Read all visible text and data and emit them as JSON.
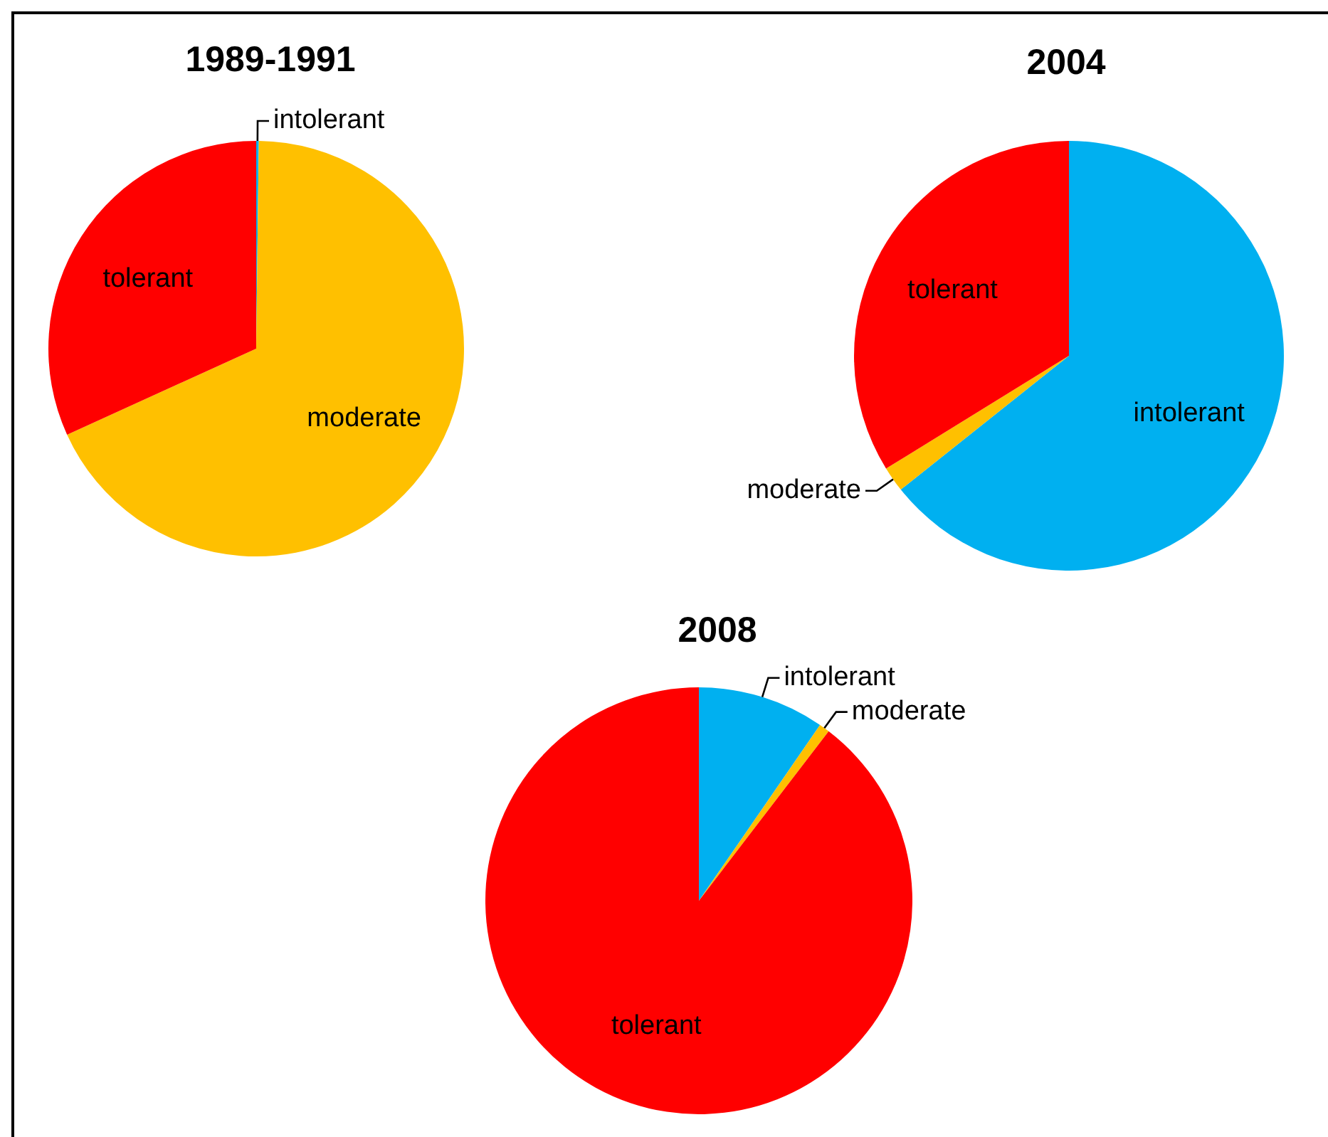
{
  "chart_data": [
    {
      "type": "pie",
      "title": "1989-1991",
      "categories": [
        "intolerant",
        "moderate",
        "tolerant"
      ],
      "values": [
        0.2,
        68.0,
        31.8
      ],
      "colors": [
        "#00b0f0",
        "#ffc000",
        "#ff0000"
      ],
      "legend": false
    },
    {
      "type": "pie",
      "title": "2004",
      "categories": [
        "intolerant",
        "moderate",
        "tolerant"
      ],
      "values": [
        64.3,
        1.9,
        33.8
      ],
      "colors": [
        "#00b0f0",
        "#ffc000",
        "#ff0000"
      ],
      "legend": false
    },
    {
      "type": "pie",
      "title": "2008",
      "categories": [
        "intolerant",
        "moderate",
        "tolerant"
      ],
      "values": [
        9.6,
        0.8,
        89.6
      ],
      "colors": [
        "#00b0f0",
        "#ffc000",
        "#ff0000"
      ],
      "legend": false
    }
  ]
}
